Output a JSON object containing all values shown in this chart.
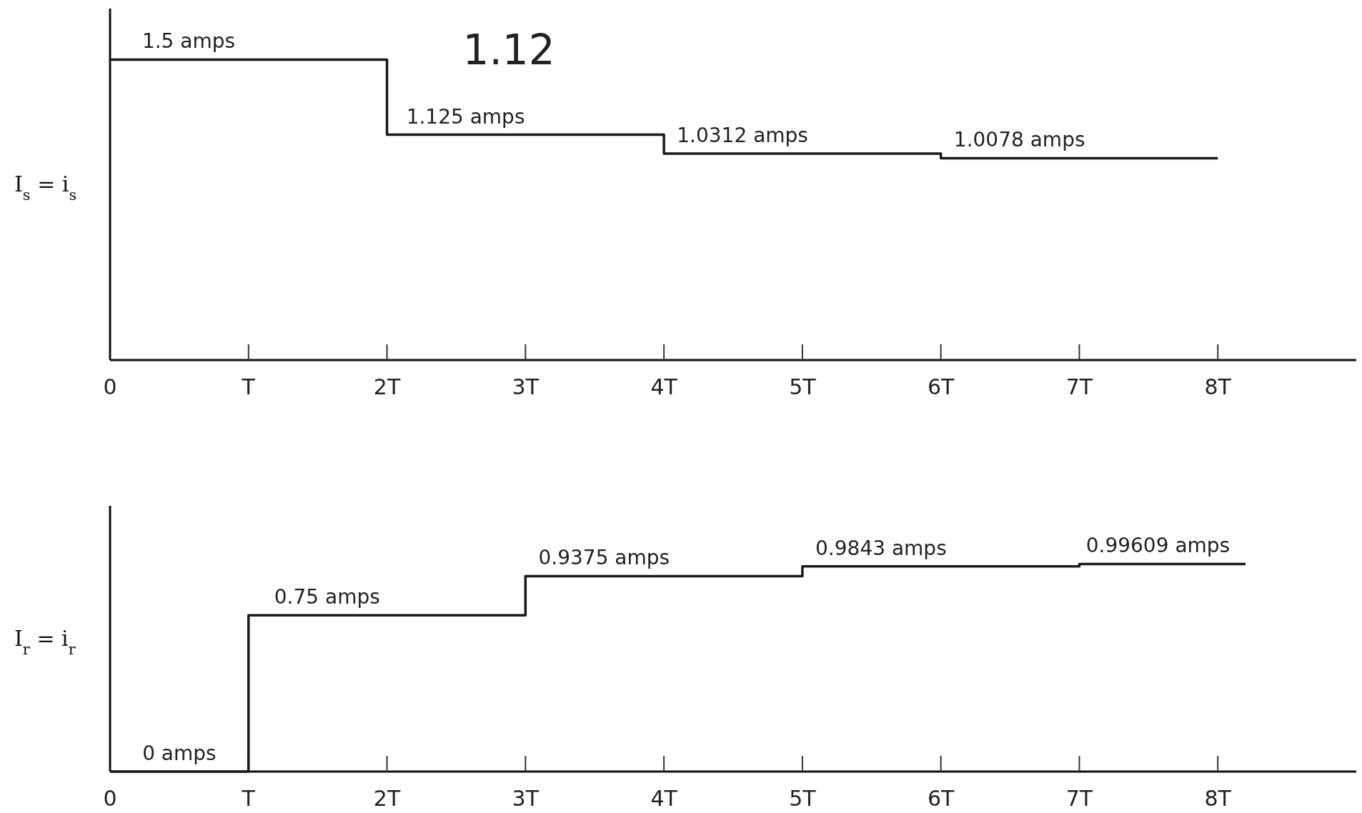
{
  "chart_data": [
    {
      "type": "step",
      "ylabel": "I$_{s}$ = i$_{s}$",
      "annotations": [
        "1.12"
      ],
      "xlim": [
        0,
        9
      ],
      "xticks": [
        0,
        {
          "value": 1,
          "label": "T"
        },
        {
          "value": 2,
          "label": "2T"
        },
        {
          "value": 3,
          "label": "3T"
        },
        {
          "value": 4,
          "label": "4T"
        },
        {
          "value": 5,
          "label": "5T"
        },
        {
          "value": 6,
          "label": "6T"
        },
        {
          "value": 7,
          "label": "7T"
        },
        {
          "value": 8,
          "label": "8T"
        }
      ],
      "tick_labels": "x",
      "series": [
        {
          "color": "#1a1a1a",
          "x": [
            0,
            2,
            4,
            6,
            8
          ],
          "values": [
            1.5,
            1.125,
            1.0312,
            1.0078,
            1.0078
          ],
          "value_labels": [
            "1.5 amps",
            "1.125 amps",
            "1.0312 amps",
            "1.0078 amps",
            null
          ]
        }
      ]
    },
    {
      "type": "step",
      "ylabel": "I$_{r}$ = i$_{r}$",
      "xlim": [
        0,
        9
      ],
      "xticks": [
        0,
        {
          "value": 1,
          "label": "T"
        },
        {
          "value": 2,
          "label": "2T"
        },
        {
          "value": 3,
          "label": "3T"
        },
        {
          "value": 4,
          "label": "4T"
        },
        {
          "value": 5,
          "label": "5T"
        },
        {
          "value": 6,
          "label": "6T"
        },
        {
          "value": 7,
          "label": "7T"
        },
        {
          "value": 8,
          "label": "8T"
        }
      ],
      "tick_labels": "x",
      "series": [
        {
          "color": "#1a1a1a",
          "x": [
            0,
            1,
            3,
            5,
            7,
            8.2
          ],
          "values": [
            0,
            0.75,
            0.9375,
            0.9843,
            0.99609,
            0.99609
          ],
          "value_labels": [
            "0 amps",
            "0.75 amps",
            "0.9375 amps",
            "0.9843 amps",
            "0.99609 amps",
            null
          ]
        }
      ]
    }
  ]
}
